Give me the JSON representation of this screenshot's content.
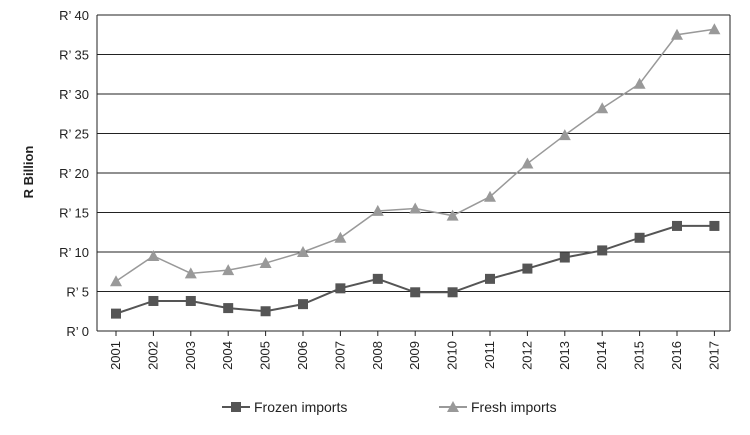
{
  "chart_data": {
    "type": "line",
    "title": "",
    "xlabel": "",
    "ylabel": "R Billion",
    "x": [
      "2001",
      "2002",
      "2003",
      "2004",
      "2005",
      "2006",
      "2007",
      "2008",
      "2009",
      "2010",
      "2011",
      "2012",
      "2013",
      "2014",
      "2015",
      "2016",
      "2017"
    ],
    "ylim": [
      0,
      40
    ],
    "yticks": [
      0,
      5,
      10,
      15,
      20,
      25,
      30,
      35,
      40
    ],
    "ytick_labels": [
      "R’ 0",
      "R’ 5",
      "R’ 10",
      "R’ 15",
      "R’ 20",
      "R’ 25",
      "R’ 30",
      "R’ 35",
      "R’ 40"
    ],
    "grid": "horizontal",
    "legend_position": "bottom",
    "series": [
      {
        "name": "Frozen imports",
        "marker": "square",
        "color": "#555555",
        "values": [
          2.2,
          3.8,
          3.8,
          2.9,
          2.5,
          3.4,
          5.4,
          6.6,
          4.9,
          4.9,
          6.6,
          7.9,
          9.3,
          10.2,
          11.8,
          13.3,
          13.3
        ]
      },
      {
        "name": "Fresh imports",
        "marker": "triangle",
        "color": "#999999",
        "values": [
          6.3,
          9.5,
          7.3,
          7.7,
          8.6,
          10.0,
          11.8,
          15.2,
          15.5,
          14.6,
          17.0,
          21.2,
          24.8,
          28.2,
          31.3,
          37.5,
          38.2
        ]
      }
    ]
  }
}
